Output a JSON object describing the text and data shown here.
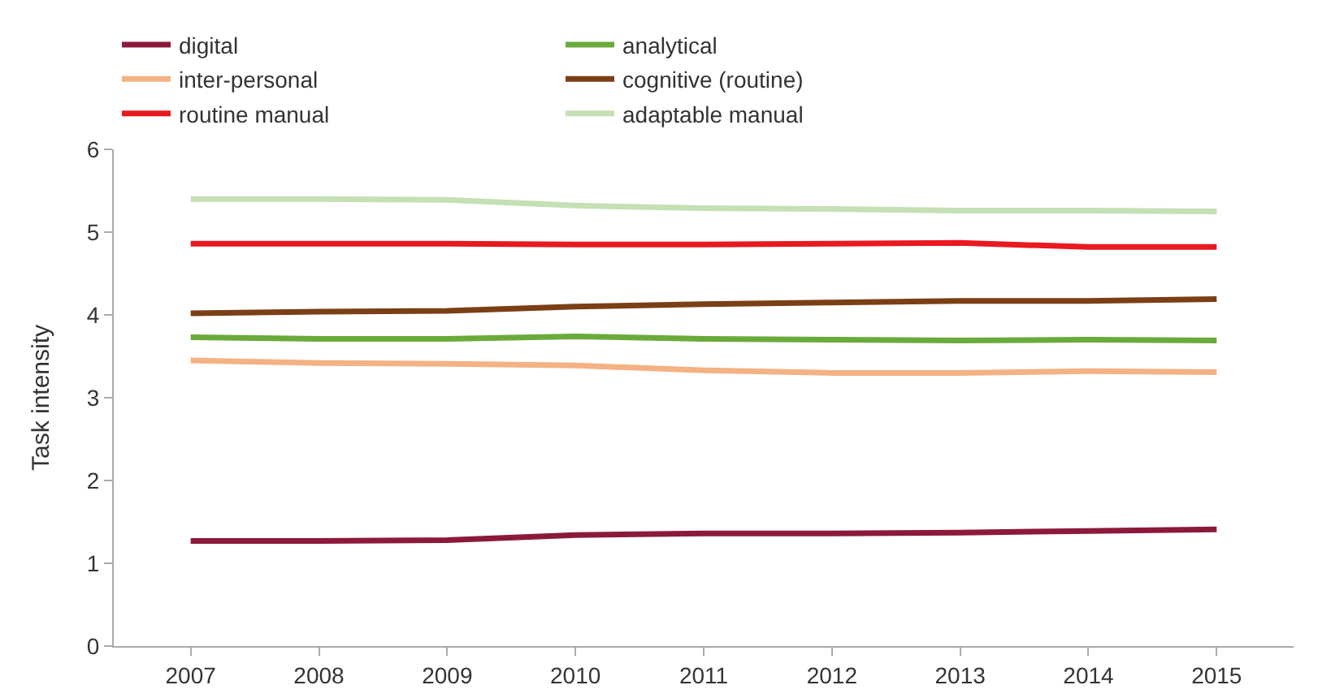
{
  "chart_data": {
    "type": "line",
    "ylabel": "Task intensity",
    "categories": [
      "2007",
      "2008",
      "2009",
      "2010",
      "2011",
      "2012",
      "2013",
      "2014",
      "2015"
    ],
    "series": [
      {
        "name": "digital",
        "color": "#8b1a3a",
        "values": [
          1.27,
          1.27,
          1.28,
          1.34,
          1.36,
          1.36,
          1.37,
          1.39,
          1.41
        ]
      },
      {
        "name": "analytical",
        "color": "#6aaa3a",
        "values": [
          3.73,
          3.71,
          3.71,
          3.74,
          3.71,
          3.7,
          3.69,
          3.7,
          3.69
        ]
      },
      {
        "name": "inter-personal",
        "color": "#f4b183",
        "values": [
          3.45,
          3.42,
          3.41,
          3.39,
          3.33,
          3.3,
          3.3,
          3.32,
          3.31
        ]
      },
      {
        "name": "cognitive (routine)",
        "color": "#7b3f16",
        "values": [
          4.02,
          4.04,
          4.05,
          4.1,
          4.13,
          4.15,
          4.17,
          4.17,
          4.19
        ]
      },
      {
        "name": "routine manual",
        "color": "#e8191f",
        "values": [
          4.86,
          4.86,
          4.86,
          4.85,
          4.85,
          4.86,
          4.87,
          4.82,
          4.82
        ]
      },
      {
        "name": "adaptable manual",
        "color": "#c5e0b4",
        "values": [
          5.4,
          5.4,
          5.39,
          5.32,
          5.29,
          5.28,
          5.26,
          5.26,
          5.25
        ]
      }
    ],
    "ylim": [
      0,
      6
    ],
    "yticks": [
      0,
      1,
      2,
      3,
      4,
      5,
      6
    ],
    "grid": false,
    "legend": "top",
    "marker": "none",
    "line_style": "solid"
  }
}
